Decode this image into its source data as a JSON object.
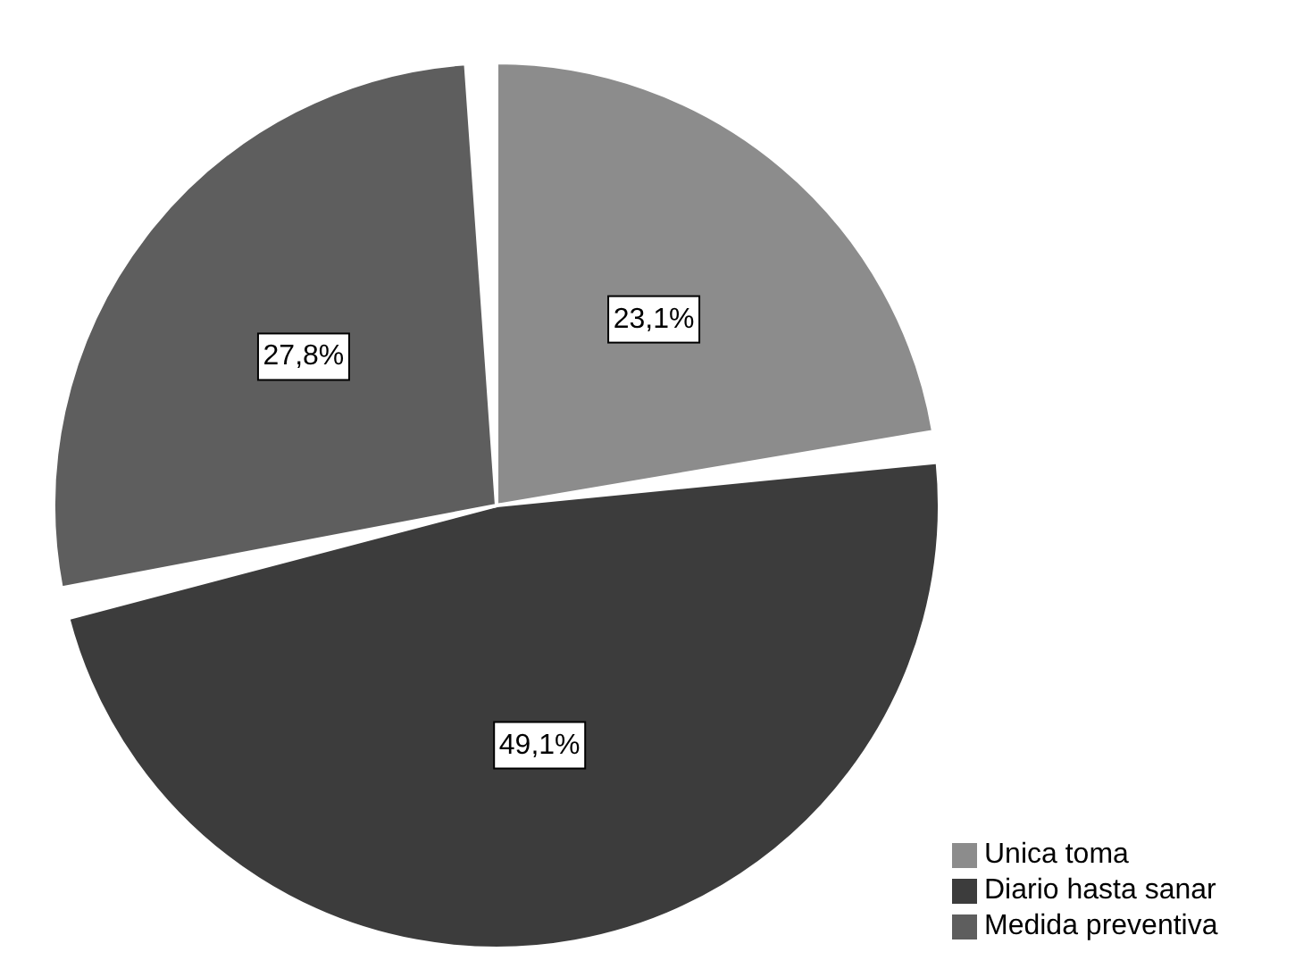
{
  "chart_data": {
    "type": "pie",
    "categories": [
      "Unica toma",
      "Diario hasta sanar",
      "Medida preventiva"
    ],
    "values": [
      23.1,
      49.1,
      27.8
    ],
    "colors": [
      "#8c8c8c",
      "#3c3c3c",
      "#5e5e5e"
    ],
    "value_labels": [
      "23,1%",
      "49,1%",
      "27,8%"
    ],
    "legend": "bottom right"
  }
}
